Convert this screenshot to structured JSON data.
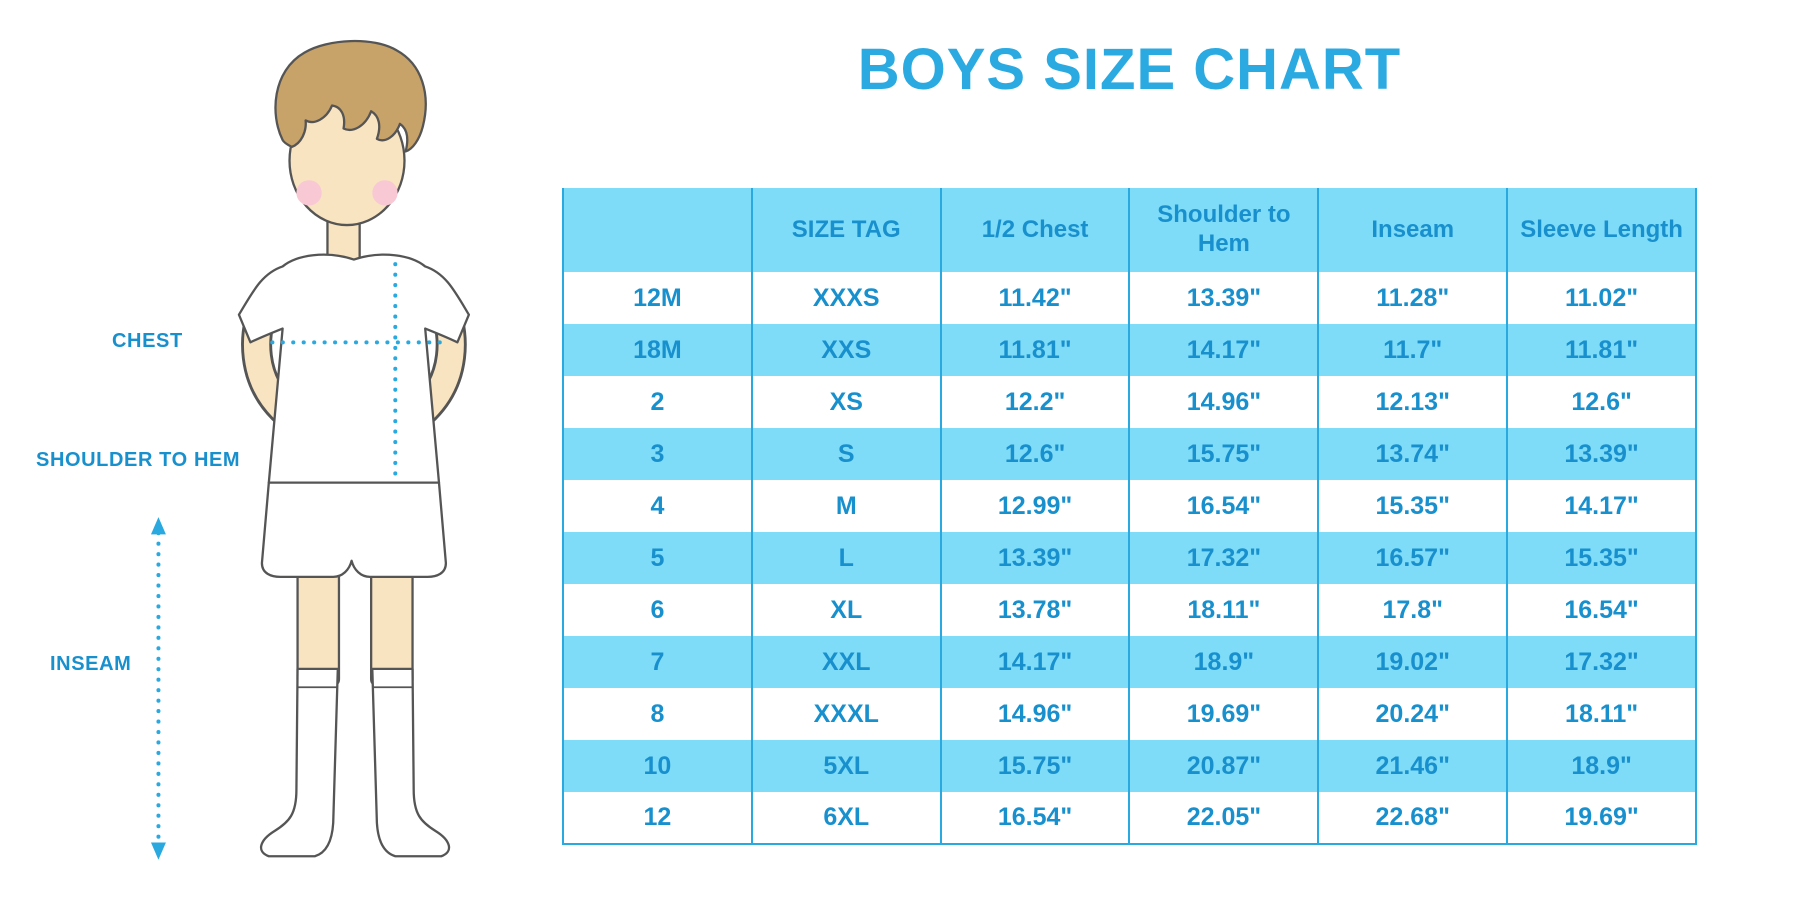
{
  "title": "BOYS SIZE CHART",
  "illustration": {
    "labels": {
      "chest": "CHEST",
      "shoulder_to_hem": "SHOULDER TO HEM",
      "inseam": "INSEAM"
    }
  },
  "colors": {
    "accent_blue": "#2BAAE2",
    "table_text_blue": "#1990CE",
    "row_fill_blue": "#7EDCF8",
    "grid_line_blue": "#2AA9E0",
    "skin": "#F9E4C1",
    "hair": "#C8A369",
    "cheek": "#F8C9D4"
  },
  "chart_data": {
    "type": "table",
    "title": "BOYS SIZE CHART",
    "columns": [
      "",
      "SIZE TAG",
      "1/2 Chest",
      "Shoulder to Hem",
      "Inseam",
      "Sleeve Length"
    ],
    "rows": [
      [
        "12M",
        "XXXS",
        "11.42\"",
        "13.39\"",
        "11.28\"",
        "11.02\""
      ],
      [
        "18M",
        "XXS",
        "11.81\"",
        "14.17\"",
        "11.7\"",
        "11.81\""
      ],
      [
        "2",
        "XS",
        "12.2\"",
        "14.96\"",
        "12.13\"",
        "12.6\""
      ],
      [
        "3",
        "S",
        "12.6\"",
        "15.75\"",
        "13.74\"",
        "13.39\""
      ],
      [
        "4",
        "M",
        "12.99\"",
        "16.54\"",
        "15.35\"",
        "14.17\""
      ],
      [
        "5",
        "L",
        "13.39\"",
        "17.32\"",
        "16.57\"",
        "15.35\""
      ],
      [
        "6",
        "XL",
        "13.78\"",
        "18.11\"",
        "17.8\"",
        "16.54\""
      ],
      [
        "7",
        "XXL",
        "14.17\"",
        "18.9\"",
        "19.02\"",
        "17.32\""
      ],
      [
        "8",
        "XXXL",
        "14.96\"",
        "19.69\"",
        "20.24\"",
        "18.11\""
      ],
      [
        "10",
        "5XL",
        "15.75\"",
        "20.87\"",
        "21.46\"",
        "18.9\""
      ],
      [
        "12",
        "6XL",
        "16.54\"",
        "22.05\"",
        "22.68\"",
        "19.69\""
      ]
    ]
  }
}
